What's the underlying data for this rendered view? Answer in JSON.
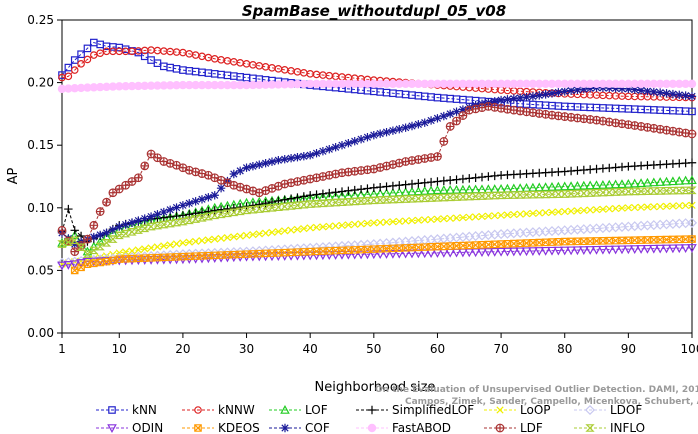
{
  "chart_data": {
    "type": "line",
    "title": "SpamBase_withoutdupl_05_v08",
    "xlabel": "Neighborhood size",
    "ylabel": "AP",
    "xlim": [
      1,
      100
    ],
    "ylim": [
      0,
      0.25
    ],
    "xticks": [
      1,
      10,
      20,
      30,
      40,
      50,
      60,
      70,
      80,
      90,
      100
    ],
    "xtick_labels": [
      "1",
      "10",
      "20",
      "30",
      "40",
      "50",
      "60",
      "70",
      "80",
      "90",
      "100"
    ],
    "yticks": [
      0,
      0.05,
      0.1,
      0.15,
      0.2,
      0.25
    ],
    "ytick_labels": [
      "0.00",
      "0.05",
      "0.10",
      "0.15",
      "0.20",
      "0.25"
    ],
    "grid": false,
    "legend_position": "bottom",
    "watermark": [
      "On the Evaluation of Unsupervised Outlier Detection. DAMI, 2015.",
      "Campos, Zimek, Sander, Campello, Micenkova, Schubert, Assent, Houle"
    ],
    "series": [
      {
        "name": "kNN",
        "color": "#2222cc",
        "marker": "square",
        "points": [
          [
            1,
            0.206
          ],
          [
            3,
            0.218
          ],
          [
            6,
            0.232
          ],
          [
            8,
            0.229
          ],
          [
            10,
            0.228
          ],
          [
            13,
            0.224
          ],
          [
            15,
            0.218
          ],
          [
            17,
            0.213
          ],
          [
            20,
            0.21
          ],
          [
            25,
            0.207
          ],
          [
            30,
            0.204
          ],
          [
            40,
            0.198
          ],
          [
            50,
            0.193
          ],
          [
            60,
            0.188
          ],
          [
            70,
            0.184
          ],
          [
            80,
            0.181
          ],
          [
            90,
            0.179
          ],
          [
            100,
            0.177
          ]
        ]
      },
      {
        "name": "kNNW",
        "color": "#dd2222",
        "marker": "circle",
        "points": [
          [
            1,
            0.204
          ],
          [
            2,
            0.205
          ],
          [
            4,
            0.215
          ],
          [
            6,
            0.222
          ],
          [
            8,
            0.225
          ],
          [
            12,
            0.225
          ],
          [
            15,
            0.226
          ],
          [
            20,
            0.224
          ],
          [
            25,
            0.219
          ],
          [
            30,
            0.215
          ],
          [
            40,
            0.207
          ],
          [
            50,
            0.202
          ],
          [
            60,
            0.198
          ],
          [
            70,
            0.194
          ],
          [
            80,
            0.191
          ],
          [
            90,
            0.189
          ],
          [
            100,
            0.188
          ]
        ]
      },
      {
        "name": "LOF",
        "color": "#22cc22",
        "marker": "triangle-up",
        "points": [
          [
            1,
            0.072
          ],
          [
            3,
            0.078
          ],
          [
            5,
            0.065
          ],
          [
            8,
            0.077
          ],
          [
            10,
            0.083
          ],
          [
            15,
            0.09
          ],
          [
            20,
            0.094
          ],
          [
            25,
            0.1
          ],
          [
            30,
            0.104
          ],
          [
            40,
            0.108
          ],
          [
            50,
            0.111
          ],
          [
            60,
            0.114
          ],
          [
            70,
            0.115
          ],
          [
            80,
            0.117
          ],
          [
            90,
            0.119
          ],
          [
            100,
            0.122
          ]
        ]
      },
      {
        "name": "SimplifiedLOF",
        "color": "#000000",
        "marker": "plus",
        "points": [
          [
            1,
            0.081
          ],
          [
            2,
            0.099
          ],
          [
            3,
            0.082
          ],
          [
            5,
            0.073
          ],
          [
            8,
            0.08
          ],
          [
            10,
            0.086
          ],
          [
            15,
            0.091
          ],
          [
            20,
            0.094
          ],
          [
            25,
            0.098
          ],
          [
            30,
            0.101
          ],
          [
            40,
            0.11
          ],
          [
            50,
            0.116
          ],
          [
            60,
            0.121
          ],
          [
            70,
            0.126
          ],
          [
            80,
            0.129
          ],
          [
            90,
            0.133
          ],
          [
            100,
            0.136
          ]
        ]
      },
      {
        "name": "LoOP",
        "color": "#f0f000",
        "marker": "x",
        "points": [
          [
            1,
            0.055
          ],
          [
            3,
            0.057
          ],
          [
            5,
            0.058
          ],
          [
            10,
            0.064
          ],
          [
            20,
            0.072
          ],
          [
            30,
            0.078
          ],
          [
            40,
            0.084
          ],
          [
            50,
            0.088
          ],
          [
            60,
            0.091
          ],
          [
            70,
            0.094
          ],
          [
            80,
            0.097
          ],
          [
            90,
            0.1
          ],
          [
            100,
            0.102
          ]
        ]
      },
      {
        "name": "LDOF",
        "color": "#c8c8f0",
        "marker": "diamond",
        "points": [
          [
            1,
            0.056
          ],
          [
            5,
            0.058
          ],
          [
            10,
            0.06
          ],
          [
            20,
            0.063
          ],
          [
            30,
            0.065
          ],
          [
            40,
            0.068
          ],
          [
            50,
            0.071
          ],
          [
            60,
            0.075
          ],
          [
            70,
            0.079
          ],
          [
            80,
            0.082
          ],
          [
            90,
            0.085
          ],
          [
            100,
            0.088
          ]
        ]
      },
      {
        "name": "ODIN",
        "color": "#8833dd",
        "marker": "triangle-down",
        "points": [
          [
            1,
            0.054
          ],
          [
            3,
            0.055
          ],
          [
            5,
            0.057
          ],
          [
            10,
            0.058
          ],
          [
            20,
            0.059
          ],
          [
            30,
            0.061
          ],
          [
            40,
            0.062
          ],
          [
            50,
            0.063
          ],
          [
            60,
            0.064
          ],
          [
            70,
            0.065
          ],
          [
            80,
            0.066
          ],
          [
            90,
            0.067
          ],
          [
            100,
            0.068
          ]
        ]
      },
      {
        "name": "KDEOS",
        "color": "#ff9900",
        "marker": "square-x",
        "points": [
          [
            3,
            0.05
          ],
          [
            5,
            0.055
          ],
          [
            8,
            0.057
          ],
          [
            10,
            0.059
          ],
          [
            20,
            0.061
          ],
          [
            30,
            0.063
          ],
          [
            40,
            0.065
          ],
          [
            50,
            0.067
          ],
          [
            60,
            0.069
          ],
          [
            70,
            0.071
          ],
          [
            80,
            0.073
          ],
          [
            90,
            0.074
          ],
          [
            100,
            0.075
          ]
        ]
      },
      {
        "name": "COF",
        "color": "#1a1a99",
        "marker": "star",
        "points": [
          [
            1,
            0.08
          ],
          [
            3,
            0.071
          ],
          [
            5,
            0.075
          ],
          [
            8,
            0.08
          ],
          [
            10,
            0.085
          ],
          [
            15,
            0.093
          ],
          [
            20,
            0.102
          ],
          [
            25,
            0.11
          ],
          [
            28,
            0.127
          ],
          [
            30,
            0.132
          ],
          [
            35,
            0.138
          ],
          [
            40,
            0.142
          ],
          [
            45,
            0.15
          ],
          [
            50,
            0.158
          ],
          [
            55,
            0.164
          ],
          [
            58,
            0.168
          ],
          [
            62,
            0.175
          ],
          [
            66,
            0.182
          ],
          [
            70,
            0.186
          ],
          [
            75,
            0.189
          ],
          [
            80,
            0.193
          ],
          [
            85,
            0.196
          ],
          [
            90,
            0.195
          ],
          [
            95,
            0.192
          ],
          [
            100,
            0.189
          ]
        ]
      },
      {
        "name": "FastABOD",
        "color": "#ffc0ff",
        "marker": "circle-filled",
        "points": [
          [
            1,
            0.195
          ],
          [
            5,
            0.196
          ],
          [
            10,
            0.197
          ],
          [
            20,
            0.198
          ],
          [
            30,
            0.198
          ],
          [
            40,
            0.199
          ],
          [
            50,
            0.199
          ],
          [
            60,
            0.199
          ],
          [
            70,
            0.199
          ],
          [
            80,
            0.199
          ],
          [
            90,
            0.199
          ],
          [
            100,
            0.199
          ]
        ]
      },
      {
        "name": "LDF",
        "color": "#aa3333",
        "marker": "circle-plus",
        "points": [
          [
            1,
            0.082
          ],
          [
            3,
            0.065
          ],
          [
            5,
            0.075
          ],
          [
            7,
            0.097
          ],
          [
            9,
            0.112
          ],
          [
            11,
            0.118
          ],
          [
            13,
            0.124
          ],
          [
            15,
            0.143
          ],
          [
            17,
            0.137
          ],
          [
            19,
            0.134
          ],
          [
            21,
            0.13
          ],
          [
            24,
            0.126
          ],
          [
            28,
            0.118
          ],
          [
            32,
            0.112
          ],
          [
            36,
            0.119
          ],
          [
            40,
            0.123
          ],
          [
            45,
            0.128
          ],
          [
            50,
            0.131
          ],
          [
            55,
            0.137
          ],
          [
            60,
            0.141
          ],
          [
            62,
            0.165
          ],
          [
            65,
            0.178
          ],
          [
            68,
            0.181
          ],
          [
            72,
            0.178
          ],
          [
            78,
            0.174
          ],
          [
            85,
            0.17
          ],
          [
            92,
            0.165
          ],
          [
            100,
            0.159
          ]
        ]
      },
      {
        "name": "INFLO",
        "color": "#aacc33",
        "marker": "hourglass",
        "points": [
          [
            1,
            0.071
          ],
          [
            3,
            0.074
          ],
          [
            5,
            0.063
          ],
          [
            8,
            0.072
          ],
          [
            10,
            0.078
          ],
          [
            15,
            0.085
          ],
          [
            20,
            0.089
          ],
          [
            25,
            0.094
          ],
          [
            30,
            0.098
          ],
          [
            40,
            0.103
          ],
          [
            50,
            0.106
          ],
          [
            60,
            0.108
          ],
          [
            70,
            0.11
          ],
          [
            80,
            0.111
          ],
          [
            90,
            0.113
          ],
          [
            100,
            0.114
          ]
        ]
      }
    ]
  }
}
